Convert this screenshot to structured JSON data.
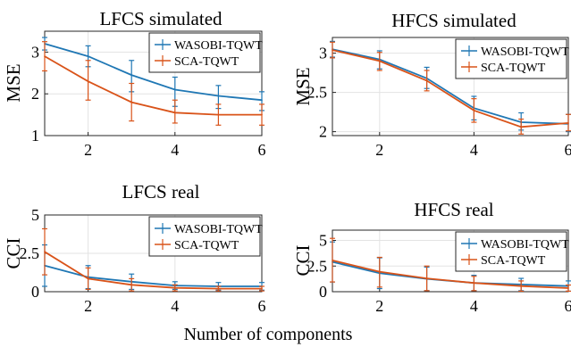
{
  "figure": {
    "shared_xlabel": "Number of components"
  },
  "chart_data": [
    {
      "type": "line",
      "title": "LFCS simulated",
      "xlabel": "",
      "ylabel": "MSE",
      "xlim": [
        1,
        6
      ],
      "ylim": [
        1,
        3.5
      ],
      "xticks": [
        2,
        4,
        6
      ],
      "yticks": [
        1,
        2,
        3
      ],
      "ytick_labels": [
        "1",
        "2",
        "3"
      ],
      "grid": true,
      "legend_position": "top-right",
      "x": [
        1,
        2,
        3,
        4,
        5,
        6
      ],
      "series": [
        {
          "name": "WASOBI-TQWT",
          "color": "#1f77b4",
          "values": [
            3.2,
            2.9,
            2.45,
            2.1,
            1.95,
            1.85
          ],
          "err_low": [
            3.05,
            2.65,
            2.05,
            1.7,
            1.65,
            1.6
          ],
          "err_high": [
            3.35,
            3.15,
            2.8,
            2.4,
            2.2,
            2.05
          ]
        },
        {
          "name": "SCA-TQWT",
          "color": "#d95319",
          "values": [
            2.9,
            2.3,
            1.8,
            1.55,
            1.5,
            1.5
          ],
          "err_low": [
            2.55,
            1.85,
            1.35,
            1.3,
            1.25,
            1.25
          ],
          "err_high": [
            3.25,
            2.8,
            2.25,
            1.85,
            1.75,
            1.75
          ]
        }
      ]
    },
    {
      "type": "line",
      "title": "HFCS simulated",
      "xlabel": "",
      "ylabel": "MSE",
      "xlim": [
        1,
        6
      ],
      "ylim": [
        1.95,
        3.2
      ],
      "xticks": [
        2,
        4,
        6
      ],
      "yticks": [
        2,
        2.5,
        3
      ],
      "ytick_labels": [
        "2",
        "2.5",
        "3"
      ],
      "grid": true,
      "legend_position": "top-right",
      "x": [
        1,
        2,
        3,
        4,
        5,
        6
      ],
      "series": [
        {
          "name": "WASOBI-TQWT",
          "color": "#1f77b4",
          "values": [
            3.05,
            2.92,
            2.68,
            2.3,
            2.12,
            2.1
          ],
          "err_low": [
            2.95,
            2.8,
            2.55,
            2.15,
            2.02,
            2.0
          ],
          "err_high": [
            3.15,
            3.03,
            2.82,
            2.45,
            2.24,
            2.22
          ]
        },
        {
          "name": "SCA-TQWT",
          "color": "#d95319",
          "values": [
            3.04,
            2.9,
            2.65,
            2.27,
            2.06,
            2.11
          ],
          "err_low": [
            2.94,
            2.78,
            2.52,
            2.12,
            1.97,
            2.01
          ],
          "err_high": [
            3.14,
            3.01,
            2.78,
            2.42,
            2.16,
            2.22
          ]
        }
      ]
    },
    {
      "type": "line",
      "title": "LFCS real",
      "xlabel": "",
      "ylabel": "CCI",
      "xlim": [
        1,
        6
      ],
      "ylim": [
        0,
        5
      ],
      "xticks": [
        2,
        4,
        6
      ],
      "yticks": [
        0,
        2.5,
        5
      ],
      "ytick_labels": [
        "0",
        "2.5",
        "5"
      ],
      "grid": true,
      "legend_position": "top-right",
      "x": [
        1,
        2,
        3,
        4,
        5,
        6
      ],
      "series": [
        {
          "name": "WASOBI-TQWT",
          "color": "#1f77b4",
          "values": [
            1.7,
            0.95,
            0.65,
            0.4,
            0.35,
            0.35
          ],
          "err_low": [
            0.35,
            0.2,
            0.15,
            0.15,
            0.1,
            0.1
          ],
          "err_high": [
            3.05,
            1.7,
            1.15,
            0.65,
            0.6,
            0.6
          ]
        },
        {
          "name": "SCA-TQWT",
          "color": "#d95319",
          "values": [
            2.6,
            0.85,
            0.45,
            0.25,
            0.2,
            0.2
          ],
          "err_low": [
            1.1,
            0.15,
            0.05,
            0.05,
            0.05,
            0.05
          ],
          "err_high": [
            4.1,
            1.55,
            0.85,
            0.45,
            0.35,
            0.35
          ]
        }
      ]
    },
    {
      "type": "line",
      "title": "HFCS real",
      "xlabel": "",
      "ylabel": "CCI",
      "xlim": [
        1,
        6
      ],
      "ylim": [
        0,
        6
      ],
      "xticks": [
        2,
        4,
        6
      ],
      "yticks": [
        0,
        2.5,
        5
      ],
      "ytick_labels": [
        "0",
        "2.5",
        "5"
      ],
      "grid": true,
      "legend_position": "top-right",
      "x": [
        1,
        2,
        3,
        4,
        5,
        6
      ],
      "series": [
        {
          "name": "WASOBI-TQWT",
          "color": "#1f77b4",
          "values": [
            2.9,
            1.8,
            1.25,
            0.85,
            0.7,
            0.55
          ],
          "err_low": [
            0.95,
            0.3,
            0.1,
            0.1,
            0.1,
            0.05
          ],
          "err_high": [
            4.85,
            3.3,
            2.4,
            1.6,
            1.3,
            1.05
          ]
        },
        {
          "name": "SCA-TQWT",
          "color": "#d95319",
          "values": [
            3.05,
            1.95,
            1.3,
            0.85,
            0.55,
            0.35
          ],
          "err_low": [
            0.95,
            0.45,
            0.1,
            0.1,
            0.05,
            0.05
          ],
          "err_high": [
            5.2,
            3.35,
            2.5,
            1.5,
            1.05,
            0.65
          ]
        }
      ]
    }
  ]
}
